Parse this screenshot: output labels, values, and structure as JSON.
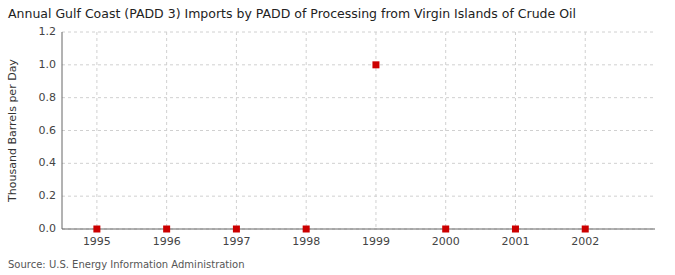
{
  "chart_data": {
    "type": "scatter",
    "title": "Annual Gulf Coast (PADD 3) Imports by PADD of Processing from Virgin Islands of Crude Oil",
    "y_label": "Thousand Barrels per Day",
    "source": "Source: U.S. Energy Information Administration",
    "x": [
      1995,
      1996,
      1997,
      1998,
      1999,
      2000,
      2001,
      2002
    ],
    "values": [
      0.0,
      0.0,
      0.0,
      0.0,
      1.0,
      0.0,
      0.0,
      0.0
    ],
    "color": "#cc0000",
    "marker": "square",
    "xlim": [
      1994.5,
      2003.0
    ],
    "ylim": [
      0.0,
      1.2
    ],
    "xticks": [
      1995,
      1996,
      1997,
      1998,
      1999,
      2000,
      2001,
      2002
    ],
    "yticks": [
      {
        "value": 0.0,
        "label": "0.0"
      },
      0.2,
      0.4,
      0.6,
      0.8,
      {
        "value": 1.0,
        "label": "1.0"
      },
      1.2
    ],
    "grid": true
  }
}
